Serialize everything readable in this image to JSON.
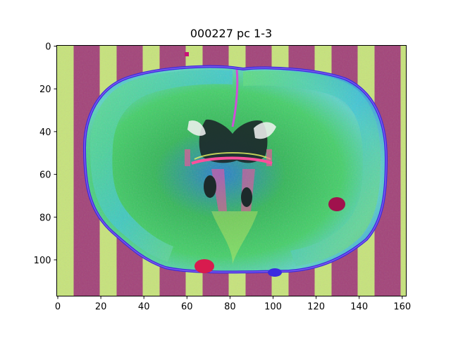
{
  "figure": {
    "title": "000227 pc 1-3"
  },
  "axes": {
    "x_ticks": [
      "0",
      "20",
      "40",
      "60",
      "80",
      "100",
      "120",
      "140",
      "160"
    ],
    "y_ticks": [
      "0",
      "20",
      "40",
      "60",
      "80",
      "100"
    ]
  },
  "image": {
    "description_shape": "coronal-brain-section",
    "colors": {
      "stripe_green": "#c7e37d",
      "stripe_magenta": "#a3457a",
      "tissue_green": "#38c24a",
      "tissue_cyan": "#35c9d8",
      "tissue_blue": "#2f5bd7",
      "edge_blue": "#3b2be0",
      "ventricle_dark": "#1c2a2a",
      "highlight_pink": "#ff4f9d",
      "highlight_yellow": "#e9f263"
    }
  }
}
